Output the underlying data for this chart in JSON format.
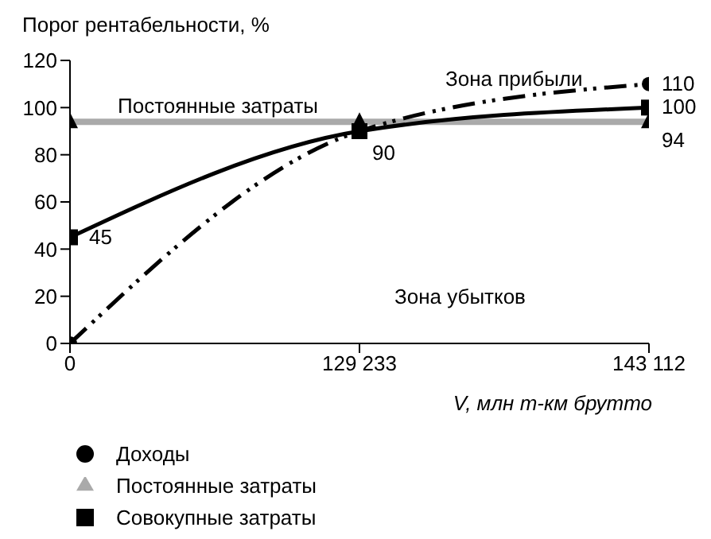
{
  "chart_data": {
    "type": "line",
    "ylabel": "Порог рентабельности, %",
    "xlabel": "V, млн т-км брутто",
    "categories": [
      "0",
      "129 233",
      "143 112"
    ],
    "series": [
      {
        "name": "Постоянные затраты",
        "color": "#aaaaaa",
        "values": [
          94,
          94,
          94
        ],
        "marker": "triangle",
        "line_style": "solid",
        "value_labels": [
          null,
          null,
          "94"
        ]
      },
      {
        "name": "Доходы",
        "color": "#000000",
        "values": [
          0,
          90,
          110
        ],
        "marker": "circle",
        "line_style": "dashed",
        "value_labels": [
          null,
          null,
          "110"
        ]
      },
      {
        "name": "Совокупные затраты",
        "color": "#000000",
        "values": [
          45,
          90,
          100
        ],
        "marker": "square",
        "line_style": "solid",
        "value_labels": [
          "45",
          "90",
          "100"
        ]
      }
    ],
    "ylim": [
      0,
      120
    ],
    "yticks": [
      0,
      20,
      40,
      60,
      80,
      100,
      120
    ],
    "grid": false,
    "legend": "bottom",
    "annotations": [
      "Постоянные затраты",
      "Зона прибыли",
      "Зона убытков"
    ]
  }
}
